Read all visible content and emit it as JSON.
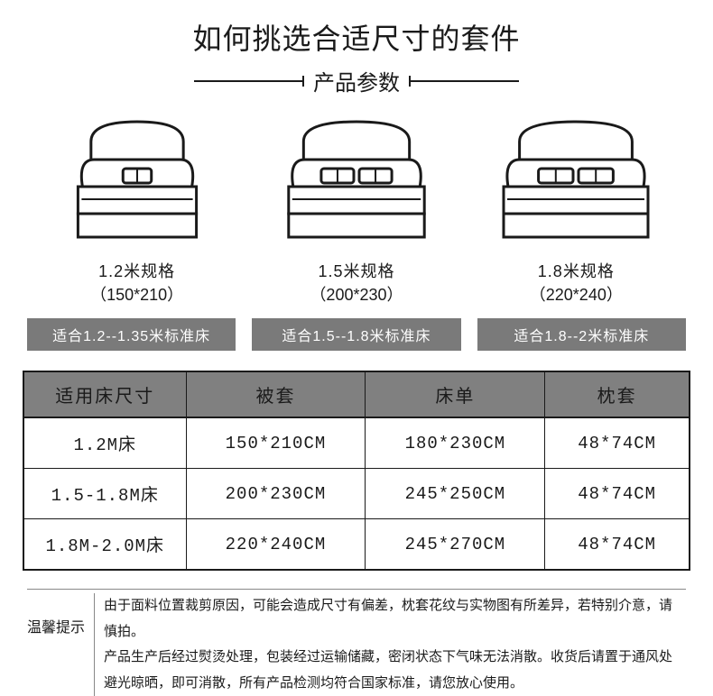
{
  "title": {
    "main": "如何挑选合适尺寸的套件",
    "sub": "产品参数",
    "title_fontsize": 32,
    "sub_fontsize": 24,
    "line_color": "#1a1a1a"
  },
  "beds": [
    {
      "spec": "1.2米规格",
      "dim": "（150*210）",
      "fit": "适合1.2--1.35米标准床",
      "pillows": 1,
      "width_ratio": 0.82
    },
    {
      "spec": "1.5米规格",
      "dim": "（200*230）",
      "fit": "适合1.5--1.8米标准床",
      "pillows": 2,
      "width_ratio": 0.94
    },
    {
      "spec": "1.8米规格",
      "dim": "（220*240）",
      "fit": "适合1.8--2米标准床",
      "pillows": 2,
      "width_ratio": 1.0
    }
  ],
  "bed_icon_style": {
    "stroke": "#1a1a1a",
    "stroke_width": 3,
    "fill": "#ffffff"
  },
  "table": {
    "columns": [
      "适用床尺寸",
      "被套",
      "床单",
      "枕套"
    ],
    "rows": [
      [
        "1.2M床",
        "150*210CM",
        "180*230CM",
        "48*74CM"
      ],
      [
        "1.5-1.8M床",
        "200*230CM",
        "245*250CM",
        "48*74CM"
      ],
      [
        "1.8M-2.0M床",
        "220*240CM",
        "245*270CM",
        "48*74CM"
      ]
    ],
    "header_bg": "#808080",
    "header_color": "#1a1a1a",
    "border_color": "#1a1a1a",
    "fontsize_header": 20,
    "fontsize_cell": 19
  },
  "notice": {
    "label": "温馨提示",
    "lines": [
      "由于面料位置裁剪原因，可能会造成尺寸有偏差，枕套花纹与实物图有所差异，若特别介意，请慎拍。",
      "产品生产后经过熨烫处理，包装经过运输储藏，密闭状态下气味无法消散。收货后请置于通风处避光晾晒，即可消散，所有产品检测均符合国家标准，请您放心使用。"
    ]
  },
  "colors": {
    "text": "#1a1a1a",
    "fit_bg": "#7a7a7a",
    "fit_text": "#ffffff",
    "background": "#ffffff"
  }
}
